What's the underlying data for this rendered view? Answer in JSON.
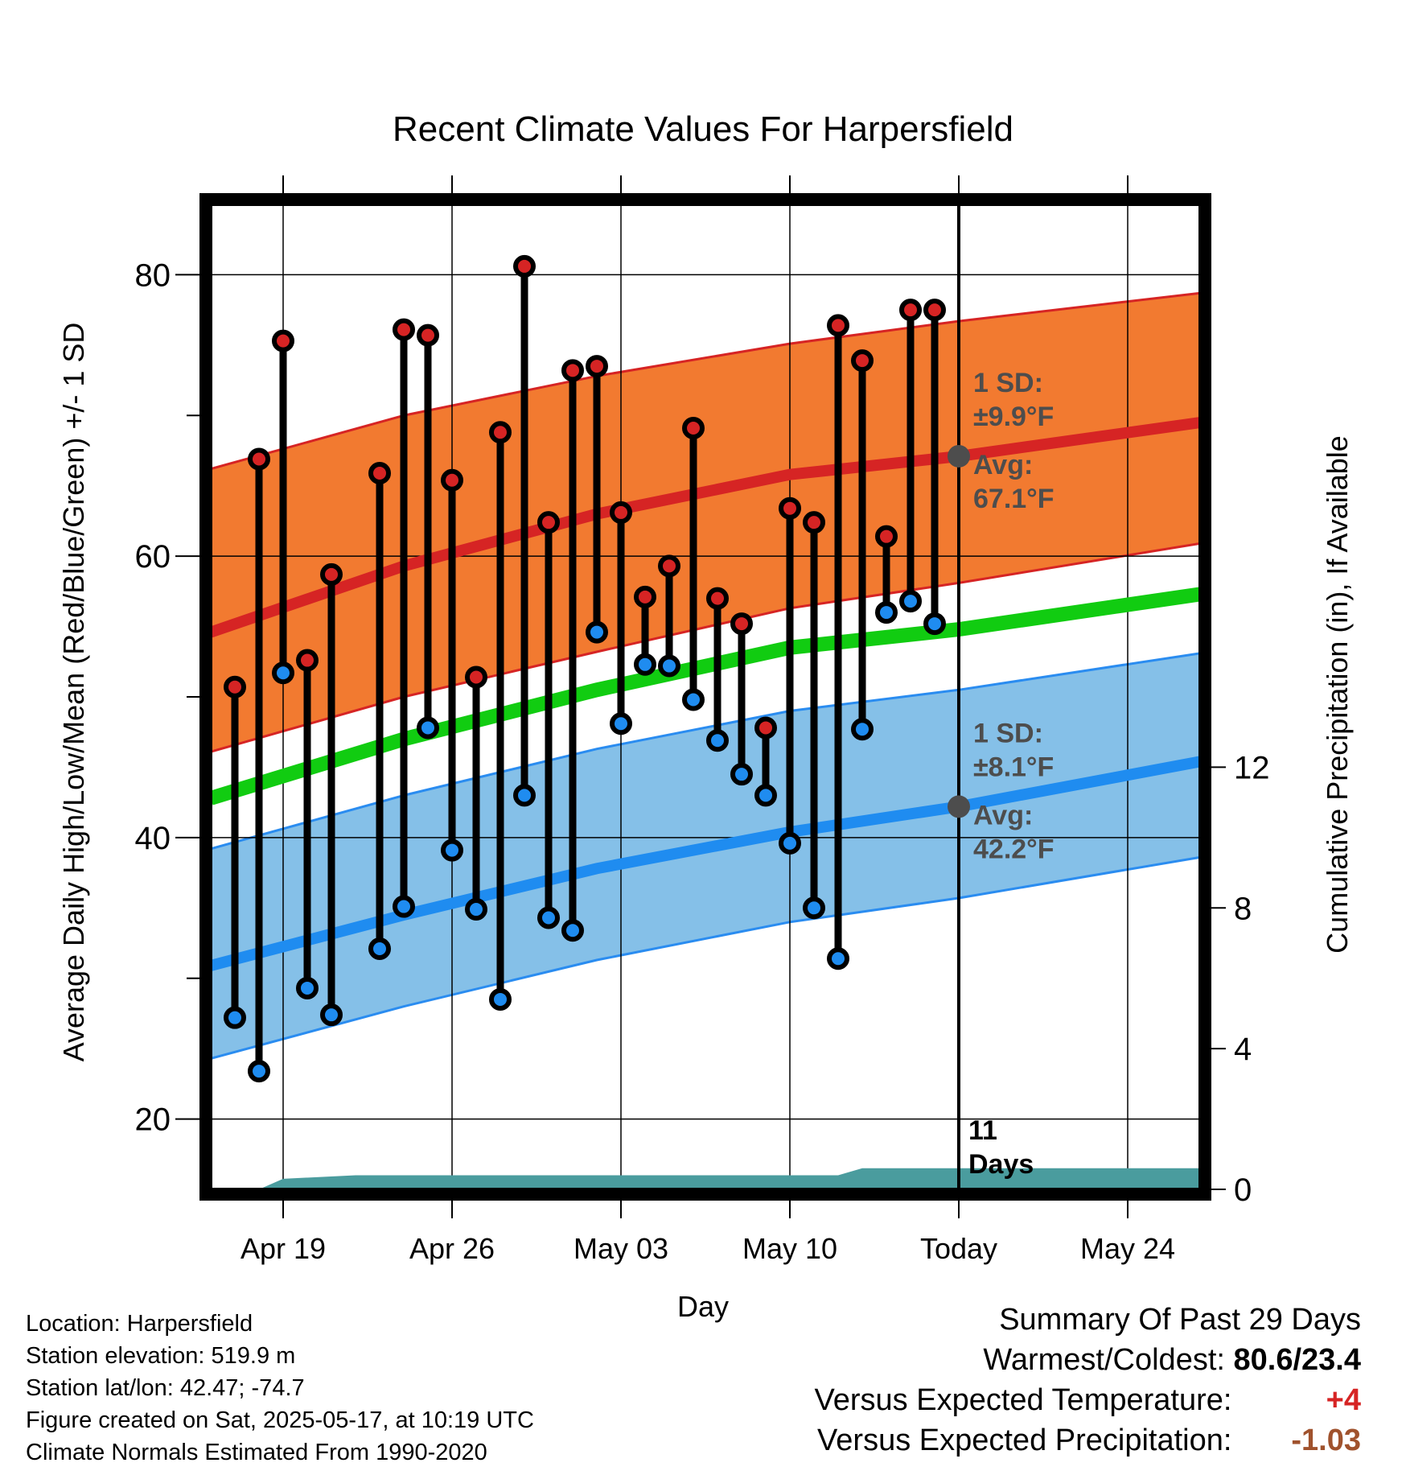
{
  "chart_data": {
    "type": "line",
    "title": "Recent Climate Values For Harpersfield",
    "xlabel": "Day",
    "ylabel": "Average Daily High/Low/Mean (Red/Blue/Green) +/- 1 SD",
    "y2label": "Cumulative Precipitation (in), If Available",
    "x_ticks": [
      {
        "date": "2025-04-19",
        "label": "Apr 19"
      },
      {
        "date": "2025-04-26",
        "label": "Apr 26"
      },
      {
        "date": "2025-05-03",
        "label": "May 03"
      },
      {
        "date": "2025-05-10",
        "label": "May 10"
      },
      {
        "date": "2025-05-17",
        "label": "Today"
      },
      {
        "date": "2025-05-24",
        "label": "May 24"
      }
    ],
    "xlim": [
      "2025-04-16",
      "2025-05-27"
    ],
    "ylim": [
      15,
      85
    ],
    "y_ticks": [
      20,
      40,
      60,
      80
    ],
    "y2lim": [
      0,
      28
    ],
    "y2_ticks": [
      0,
      4,
      8,
      12
    ],
    "grid": true,
    "today_date": "2025-05-17",
    "today_label_line1": "11",
    "today_label_line2": "Days",
    "normals": {
      "dates": [
        "2025-04-16",
        "2025-04-24",
        "2025-05-02",
        "2025-05-10",
        "2025-05-17",
        "2025-05-27"
      ],
      "high_mean": [
        54.6,
        59.3,
        63.0,
        65.8,
        67.1,
        69.5
      ],
      "high_upper": [
        66.2,
        70.0,
        72.8,
        75.1,
        76.7,
        78.7
      ],
      "high_lower": [
        46.1,
        50.0,
        53.2,
        56.3,
        58.1,
        60.9
      ],
      "mean": [
        42.8,
        47.0,
        50.5,
        53.5,
        54.8,
        57.3
      ],
      "low_mean": [
        30.9,
        34.5,
        37.8,
        40.4,
        42.2,
        45.4
      ],
      "low_upper": [
        39.2,
        43.0,
        46.3,
        49.0,
        50.5,
        53.1
      ],
      "low_lower": [
        24.3,
        28.0,
        31.3,
        34.0,
        35.7,
        38.6
      ]
    },
    "high_band_label": "1 SD:",
    "high_band_value": "±9.9°F",
    "high_avg_label": "Avg:",
    "high_avg_value": "67.1°F",
    "low_band_label": "1 SD:",
    "low_band_value": "±8.1°F",
    "low_avg_label": "Avg:",
    "low_avg_value": "42.2°F",
    "daily": [
      {
        "date": "2025-04-17",
        "high": 50.7,
        "low": 27.2
      },
      {
        "date": "2025-04-18",
        "high": 66.9,
        "low": 23.4
      },
      {
        "date": "2025-04-19",
        "high": 75.3,
        "low": 51.7
      },
      {
        "date": "2025-04-20",
        "high": 52.6,
        "low": 29.3
      },
      {
        "date": "2025-04-21",
        "high": 58.7,
        "low": 27.4
      },
      {
        "date": "2025-04-23",
        "high": 65.9,
        "low": 32.1
      },
      {
        "date": "2025-04-24",
        "high": 76.1,
        "low": 35.1
      },
      {
        "date": "2025-04-25",
        "high": 75.7,
        "low": 47.8
      },
      {
        "date": "2025-04-26",
        "high": 65.4,
        "low": 39.1
      },
      {
        "date": "2025-04-27",
        "high": 51.4,
        "low": 34.9
      },
      {
        "date": "2025-04-28",
        "high": 68.8,
        "low": 28.5
      },
      {
        "date": "2025-04-29",
        "high": 80.6,
        "low": 43.0
      },
      {
        "date": "2025-04-30",
        "high": 62.4,
        "low": 34.3
      },
      {
        "date": "2025-05-01",
        "high": 73.2,
        "low": 33.4
      },
      {
        "date": "2025-05-02",
        "high": 73.5,
        "low": 54.6
      },
      {
        "date": "2025-05-03",
        "high": 63.1,
        "low": 48.1
      },
      {
        "date": "2025-05-04",
        "high": 57.1,
        "low": 52.3
      },
      {
        "date": "2025-05-05",
        "high": 59.3,
        "low": 52.2
      },
      {
        "date": "2025-05-06",
        "high": 69.1,
        "low": 49.8
      },
      {
        "date": "2025-05-07",
        "high": 57.0,
        "low": 46.9
      },
      {
        "date": "2025-05-08",
        "high": 55.2,
        "low": 44.5
      },
      {
        "date": "2025-05-09",
        "high": 47.8,
        "low": 43.0
      },
      {
        "date": "2025-05-10",
        "high": 63.4,
        "low": 39.6
      },
      {
        "date": "2025-05-11",
        "high": 62.4,
        "low": 35.0
      },
      {
        "date": "2025-05-12",
        "high": 76.4,
        "low": 31.4
      },
      {
        "date": "2025-05-13",
        "high": 73.9,
        "low": 47.7
      },
      {
        "date": "2025-05-14",
        "high": 61.4,
        "low": 56.0
      },
      {
        "date": "2025-05-15",
        "high": 77.5,
        "low": 56.8
      },
      {
        "date": "2025-05-16",
        "high": 77.5,
        "low": 55.2
      }
    ],
    "precip": {
      "dates": [
        "2025-04-16",
        "2025-04-18",
        "2025-04-19",
        "2025-04-22",
        "2025-05-12",
        "2025-05-13",
        "2025-05-17",
        "2025-05-27"
      ],
      "values": [
        0.0,
        0.0,
        0.3,
        0.4,
        0.4,
        0.6,
        0.6,
        0.6
      ]
    },
    "colors": {
      "high_band": "#f27a30",
      "high_line": "#d62424",
      "low_band": "#85c0e8",
      "low_line": "#1f8cf0",
      "low_band_edge": "#2a8cf0",
      "mean_line": "#11cc11",
      "high_marker": "#d62424",
      "low_marker": "#1f8cf0",
      "precip": "#4a9c9e",
      "annotation": "#4d4d4d"
    }
  },
  "info": {
    "location": "Location: Harpersfield",
    "elevation": "Station elevation: 519.9 m",
    "latlon": "Station lat/lon: 42.47; -74.7",
    "created": "Figure created on Sat, 2025-05-17, at 10:19 UTC",
    "normals": "Climate Normals Estimated From 1990-2020"
  },
  "summary": {
    "title": "Summary Of Past 29 Days",
    "warmest_label": "Warmest/Coldest:",
    "warmest_value": "80.6/23.4",
    "temp_label": "Versus Expected Temperature:",
    "temp_value": "+4",
    "temp_color": "#d62424",
    "precip_label": "Versus Expected Precipitation:",
    "precip_value": "-1.03",
    "precip_color": "#a0522d"
  }
}
